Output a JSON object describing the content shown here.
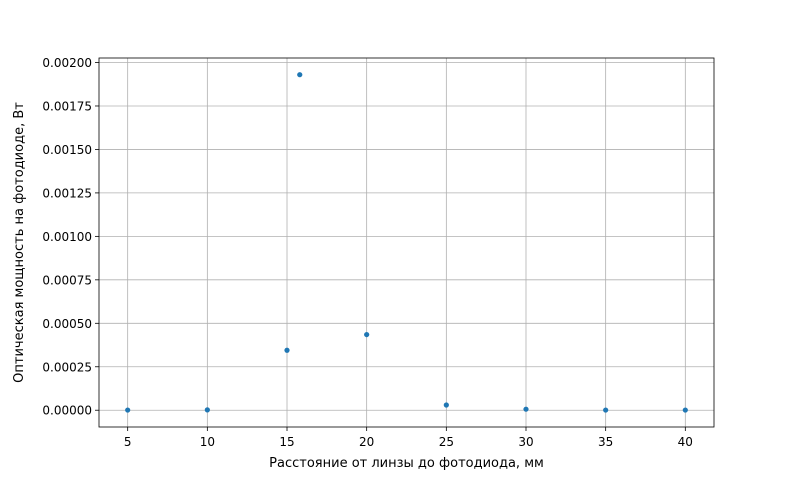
{
  "chart_data": {
    "type": "scatter",
    "title": "",
    "xlabel": "Расстояние от линзы до фотодиода, мм",
    "ylabel": "Оптическая мощность на фотодиоде, Вт",
    "xlim": [
      3.2,
      41.8
    ],
    "ylim": [
      -9.65e-05,
      0.002026
    ],
    "xticks": [
      5,
      10,
      15,
      20,
      25,
      30,
      35,
      40
    ],
    "xtick_labels": [
      "5",
      "10",
      "15",
      "20",
      "25",
      "30",
      "35",
      "40"
    ],
    "yticks": [
      0,
      0.00025,
      0.0005,
      0.00075,
      0.001,
      0.00125,
      0.0015,
      0.00175,
      0.002
    ],
    "ytick_labels": [
      "0.00000",
      "0.00025",
      "0.00050",
      "0.00075",
      "0.00100",
      "0.00125",
      "0.00150",
      "0.00175",
      "0.00200"
    ],
    "grid": true,
    "marker_color": "#1f77b4",
    "points": [
      {
        "x": 5,
        "y": 1e-06
      },
      {
        "x": 10,
        "y": 2e-06
      },
      {
        "x": 15,
        "y": 0.000345
      },
      {
        "x": 15.8,
        "y": 0.00193
      },
      {
        "x": 20,
        "y": 0.000435
      },
      {
        "x": 25,
        "y": 3e-05
      },
      {
        "x": 30,
        "y": 6e-06
      },
      {
        "x": 35,
        "y": 1e-06
      },
      {
        "x": 40,
        "y": 1e-06
      }
    ]
  }
}
